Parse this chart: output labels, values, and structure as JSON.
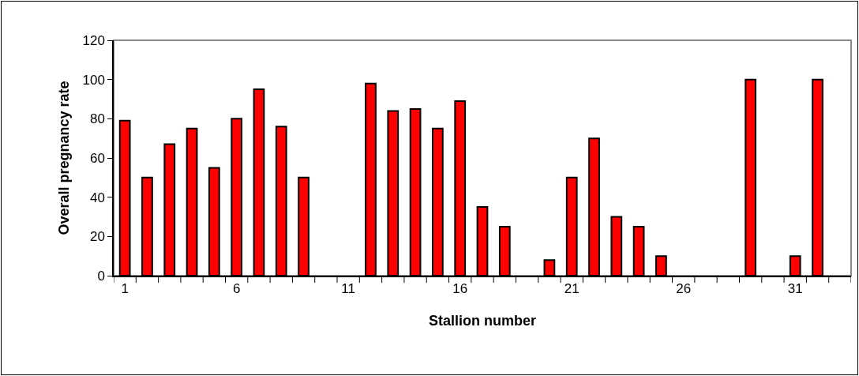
{
  "chart_data": {
    "type": "bar",
    "xlabel": "Stallion number",
    "ylabel": "Overall pregnancy rate",
    "categories": [
      "1",
      null,
      null,
      null,
      null,
      "6",
      null,
      null,
      null,
      null,
      "11",
      null,
      null,
      null,
      null,
      "16",
      null,
      null,
      null,
      null,
      "21",
      null,
      null,
      null,
      null,
      "26",
      null,
      null,
      null,
      null,
      "31",
      null,
      null
    ],
    "values": [
      79,
      50,
      67,
      75,
      55,
      80,
      95,
      76,
      50,
      null,
      null,
      98,
      84,
      85,
      75,
      89,
      35,
      25,
      null,
      8,
      50,
      70,
      30,
      25,
      10,
      null,
      null,
      null,
      100,
      null,
      10,
      100,
      null
    ],
    "color": "#ff0000",
    "ylim": [
      0,
      120
    ],
    "yticks": [
      0,
      20,
      40,
      60,
      80,
      100,
      120
    ],
    "grid": false
  }
}
